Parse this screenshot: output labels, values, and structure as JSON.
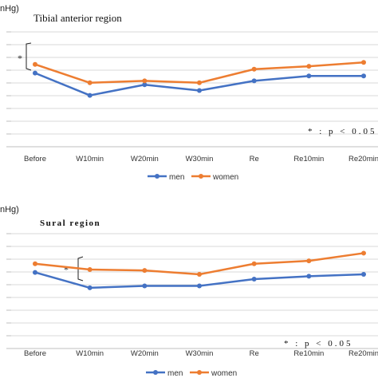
{
  "colors": {
    "men": "#4472C4",
    "women": "#ED7D31",
    "grid": "#d9d9d9",
    "axis": "#bfbfbf"
  },
  "chart_data": [
    {
      "type": "line",
      "title": "Tibial anterior region",
      "unit_label": "nHg)",
      "categories": [
        "Before",
        "W10min",
        "W20min",
        "W30min",
        "Re",
        "Re10min",
        "Re20min"
      ],
      "series": [
        {
          "name": "men",
          "values": [
            7.6,
            5.3,
            6.4,
            5.8,
            6.8,
            7.3,
            7.3
          ]
        },
        {
          "name": "women",
          "values": [
            8.5,
            6.6,
            6.8,
            6.6,
            8.0,
            8.3,
            8.7
          ]
        }
      ],
      "ylim": [
        0,
        13
      ],
      "grid": true,
      "legend": "bottom",
      "significance_marker": "*",
      "note": "* : p < 0.05"
    },
    {
      "type": "line",
      "title": "Sural region",
      "unit_label": "nHg)",
      "categories": [
        "Before",
        "W10min",
        "W20min",
        "W30min",
        "Re",
        "Re10min",
        "Re20min"
      ],
      "series": [
        {
          "name": "men",
          "values": [
            7.9,
            6.3,
            6.5,
            6.5,
            7.2,
            7.5,
            7.7
          ]
        },
        {
          "name": "women",
          "values": [
            8.8,
            8.2,
            8.1,
            7.7,
            8.8,
            9.1,
            9.9
          ]
        }
      ],
      "ylim": [
        0,
        13
      ],
      "grid": true,
      "legend": "bottom",
      "significance_marker": "*",
      "note": "* : p < 0.05"
    }
  ]
}
